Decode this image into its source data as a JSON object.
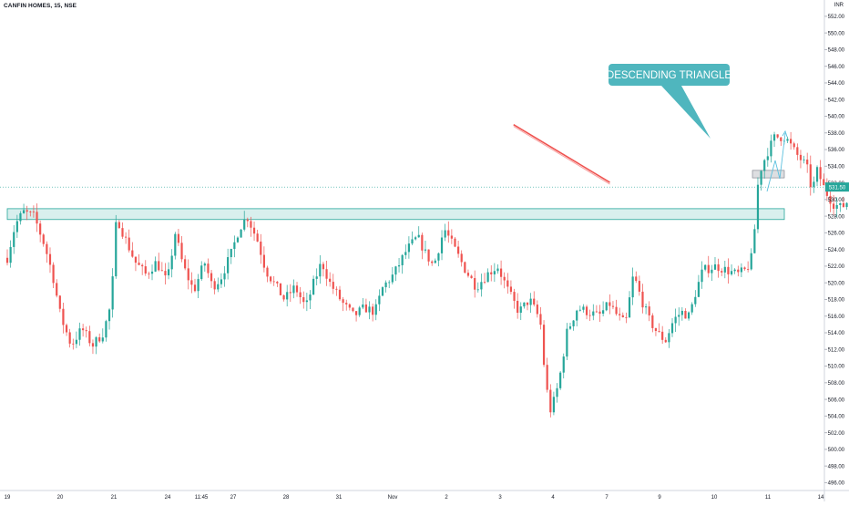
{
  "header": {
    "symbol_line": "CANFIN HOMES, 15, NSE",
    "currency": "INR"
  },
  "chart_data": {
    "type": "candlestick",
    "title": "CANFIN HOMES, 15, NSE",
    "x_ticks": [
      "19",
      "20",
      "21",
      "24",
      "11:45",
      "27",
      "28",
      "31",
      "Nov",
      "2",
      "3",
      "4",
      "7",
      "9",
      "10",
      "11",
      "14"
    ],
    "y_ticks": [
      "496.00",
      "498.00",
      "500.00",
      "502.00",
      "504.00",
      "506.00",
      "508.00",
      "510.00",
      "512.00",
      "514.00",
      "516.00",
      "518.00",
      "520.00",
      "522.00",
      "524.00",
      "526.00",
      "528.00",
      "530.00",
      "532.00",
      "534.00",
      "536.00",
      "538.00",
      "540.00",
      "542.00",
      "544.00",
      "546.00",
      "548.00",
      "550.00",
      "552.00"
    ],
    "ylim": [
      495.5,
      553.3
    ],
    "last_price": "531.50",
    "last_price_value": 531.5,
    "annotation": "DESCENDING TRIANGLE",
    "support_zone": [
      527.6,
      528.9
    ],
    "breakout_box": [
      532.6,
      533.5
    ],
    "trendline": [
      {
        "day": 9.5,
        "price": 539.0
      },
      {
        "day": 11.0,
        "price": 532.0
      }
    ],
    "projection": [
      {
        "day": 11.0,
        "price": 531.5
      },
      {
        "day": 11.2,
        "price": 535.0
      },
      {
        "day": 11.45,
        "price": 532.8
      },
      {
        "day": 11.7,
        "price": 538.3
      }
    ],
    "path_anchors": [
      [
        0,
        523.0
      ],
      [
        0.15,
        527.0
      ],
      [
        0.3,
        528.5
      ],
      [
        0.5,
        528.0
      ],
      [
        0.7,
        524.5
      ],
      [
        0.85,
        521.0
      ],
      [
        1.0,
        516.0
      ],
      [
        1.2,
        512.5
      ],
      [
        1.4,
        514.5
      ],
      [
        1.6,
        512.5
      ],
      [
        1.8,
        514.0
      ],
      [
        1.95,
        517.5
      ],
      [
        2.05,
        528.0
      ],
      [
        2.2,
        525.5
      ],
      [
        2.4,
        522.5
      ],
      [
        2.6,
        521.0
      ],
      [
        2.8,
        522.5
      ],
      [
        3.0,
        520.0
      ],
      [
        3.15,
        526.0
      ],
      [
        3.3,
        522.0
      ],
      [
        3.5,
        519.0
      ],
      [
        3.7,
        522.5
      ],
      [
        3.85,
        519.5
      ],
      [
        4.0,
        520.5
      ],
      [
        4.2,
        523.5
      ],
      [
        4.35,
        526.5
      ],
      [
        4.5,
        528.0
      ],
      [
        4.7,
        525.0
      ],
      [
        4.85,
        521.5
      ],
      [
        5.0,
        520.0
      ],
      [
        5.2,
        518.0
      ],
      [
        5.4,
        519.5
      ],
      [
        5.6,
        517.0
      ],
      [
        5.75,
        520.0
      ],
      [
        5.9,
        522.5
      ],
      [
        6.05,
        520.0
      ],
      [
        6.3,
        517.5
      ],
      [
        6.5,
        516.0
      ],
      [
        6.7,
        517.0
      ],
      [
        6.9,
        516.5
      ],
      [
        7.05,
        519.5
      ],
      [
        7.25,
        521.0
      ],
      [
        7.5,
        524.0
      ],
      [
        7.7,
        525.5
      ],
      [
        7.85,
        523.5
      ],
      [
        8.0,
        522.0
      ],
      [
        8.2,
        526.5
      ],
      [
        8.4,
        524.0
      ],
      [
        8.6,
        521.5
      ],
      [
        8.8,
        519.5
      ],
      [
        9.0,
        521.0
      ],
      [
        9.2,
        522.0
      ],
      [
        9.4,
        519.0
      ],
      [
        9.6,
        516.5
      ],
      [
        9.8,
        518.0
      ],
      [
        10.0,
        515.5
      ],
      [
        10.1,
        508.0
      ],
      [
        10.2,
        504.5
      ],
      [
        10.35,
        508.0
      ],
      [
        10.5,
        514.0
      ],
      [
        10.7,
        517.0
      ],
      [
        10.9,
        516.5
      ],
      [
        11.1,
        516.0
      ],
      [
        11.3,
        517.5
      ],
      [
        11.45,
        516.0
      ],
      [
        11.6,
        515.0
      ],
      [
        11.75,
        521.0
      ],
      [
        11.9,
        518.0
      ],
      [
        12.05,
        515.5
      ],
      [
        12.2,
        514.0
      ],
      [
        12.35,
        513.0
      ],
      [
        12.5,
        515.5
      ],
      [
        12.65,
        516.5
      ],
      [
        12.8,
        516.0
      ],
      [
        12.9,
        518.5
      ],
      [
        13.05,
        521.5
      ],
      [
        13.3,
        522.0
      ],
      [
        13.5,
        521.5
      ],
      [
        13.7,
        521.0
      ],
      [
        13.85,
        521.5
      ],
      [
        13.95,
        522.5
      ],
      [
        14.0,
        524.5
      ],
      [
        14.1,
        533.0
      ],
      [
        14.25,
        535.5
      ],
      [
        14.4,
        537.5
      ],
      [
        14.6,
        537.5
      ],
      [
        14.8,
        535.5
      ],
      [
        15.0,
        534.0
      ],
      [
        15.1,
        531.0
      ],
      [
        15.2,
        533.5
      ],
      [
        15.35,
        531.0
      ],
      [
        15.5,
        529.5
      ],
      [
        15.65,
        529.0
      ],
      [
        15.8,
        530.0
      ],
      [
        15.9,
        530.5
      ],
      [
        16.0,
        531.5
      ]
    ]
  }
}
